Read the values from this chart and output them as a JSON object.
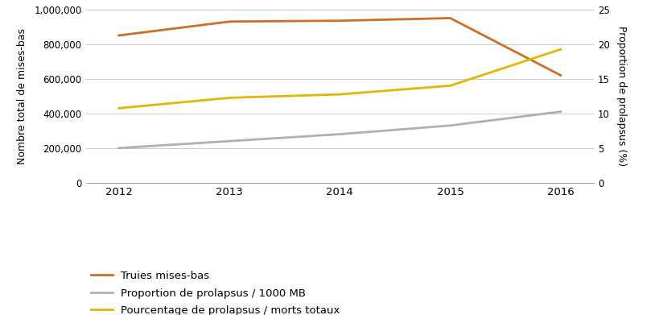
{
  "years": [
    2012,
    2013,
    2014,
    2015,
    2016
  ],
  "truies_mises_bas": [
    850000,
    930000,
    935000,
    950000,
    620000
  ],
  "proportion_prolapsus_right": [
    5.0,
    6.0,
    7.0,
    8.25,
    10.25
  ],
  "pourcentage_prolapsus_right": [
    10.75,
    12.25,
    12.75,
    14.0,
    19.25
  ],
  "left_ylim": [
    0,
    1000000
  ],
  "left_yticks": [
    0,
    200000,
    400000,
    600000,
    800000,
    1000000
  ],
  "right_ylim": [
    0,
    25
  ],
  "right_yticks": [
    0,
    5,
    10,
    15,
    20,
    25
  ],
  "color_truies": "#CD6E28",
  "color_proportion": "#B0B0B0",
  "color_pourcentage": "#E0B800",
  "legend_truies": "Truies mises-bas",
  "legend_proportion": "Proportion de prolapsus / 1000 MB",
  "legend_pourcentage": "Pourcentage de prolapsus / morts totaux",
  "ylabel_left": "Nombre total de mises-bas",
  "ylabel_right": "Proportion de prolapsus (%)",
  "background_color": "#ffffff",
  "grid_color": "#cccccc",
  "linewidth": 2.0
}
